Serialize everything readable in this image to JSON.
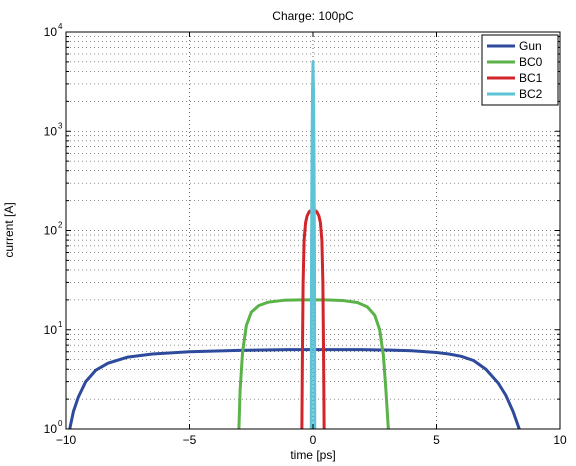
{
  "chart_data": {
    "type": "line",
    "title": "Charge: 100pC",
    "xlabel": "time [ps]",
    "ylabel": "current [A]",
    "xlim": [
      -10,
      10
    ],
    "ylim": [
      1,
      10000
    ],
    "yscale": "log",
    "grid": true,
    "legend_position": "top-right",
    "x_ticks": [
      -10,
      -5,
      0,
      5,
      10
    ],
    "x_tick_labels": [
      "−10",
      "−5",
      "0",
      "5",
      "10"
    ],
    "y_ticks": [
      1,
      10,
      100,
      1000,
      10000
    ],
    "y_tick_labels": [
      {
        "base": "10",
        "exp": "0"
      },
      {
        "base": "10",
        "exp": "1"
      },
      {
        "base": "10",
        "exp": "2"
      },
      {
        "base": "10",
        "exp": "3"
      },
      {
        "base": "10",
        "exp": "4"
      }
    ],
    "series": [
      {
        "name": "Gun",
        "color": "#2e4a9c",
        "x": [
          -9.85,
          -9.7,
          -9.5,
          -9.2,
          -8.8,
          -8.3,
          -7.5,
          -6.5,
          -5,
          -3,
          -1,
          0,
          1,
          2,
          3,
          4,
          5,
          5.5,
          6,
          6.5,
          7,
          7.5,
          7.8,
          8.1,
          8.35
        ],
        "y": [
          1.0,
          1.5,
          2.1,
          3.0,
          3.9,
          4.6,
          5.3,
          5.7,
          6.0,
          6.2,
          6.3,
          6.3,
          6.3,
          6.3,
          6.25,
          6.15,
          5.9,
          5.7,
          5.4,
          4.9,
          4.0,
          2.9,
          2.2,
          1.5,
          1.0
        ]
      },
      {
        "name": "BC0",
        "color": "#5ab248",
        "x": [
          -3.0,
          -2.95,
          -2.85,
          -2.7,
          -2.5,
          -2.2,
          -1.8,
          -1.2,
          -0.5,
          0,
          0.5,
          1.2,
          1.8,
          2.2,
          2.5,
          2.7,
          2.85,
          2.95,
          3.05
        ],
        "y": [
          1.0,
          2.5,
          6.0,
          11.0,
          15.0,
          17.5,
          19.0,
          19.8,
          20.0,
          20.0,
          20.0,
          19.7,
          18.8,
          17.0,
          14.0,
          10.0,
          5.5,
          2.5,
          1.0
        ]
      },
      {
        "name": "BC1",
        "color": "#d2252b",
        "x": [
          -0.45,
          -0.43,
          -0.4,
          -0.36,
          -0.3,
          -0.24,
          -0.15,
          -0.05,
          0,
          0.05,
          0.15,
          0.24,
          0.3,
          0.36,
          0.4,
          0.43,
          0.45
        ],
        "y": [
          1.0,
          5.0,
          30.0,
          80.0,
          120.0,
          140.0,
          155.0,
          160.0,
          160.0,
          160.0,
          155.0,
          140.0,
          120.0,
          80.0,
          30.0,
          5.0,
          1.0
        ]
      },
      {
        "name": "BC2",
        "color": "#5fc3d7",
        "x": [
          -0.07,
          -0.06,
          -0.04,
          -0.02,
          0,
          0.02,
          0.04,
          0.06,
          0.07
        ],
        "y": [
          1.0,
          50.0,
          600.0,
          2500.0,
          5000.0,
          2500.0,
          600.0,
          50.0,
          1.0
        ]
      }
    ]
  }
}
